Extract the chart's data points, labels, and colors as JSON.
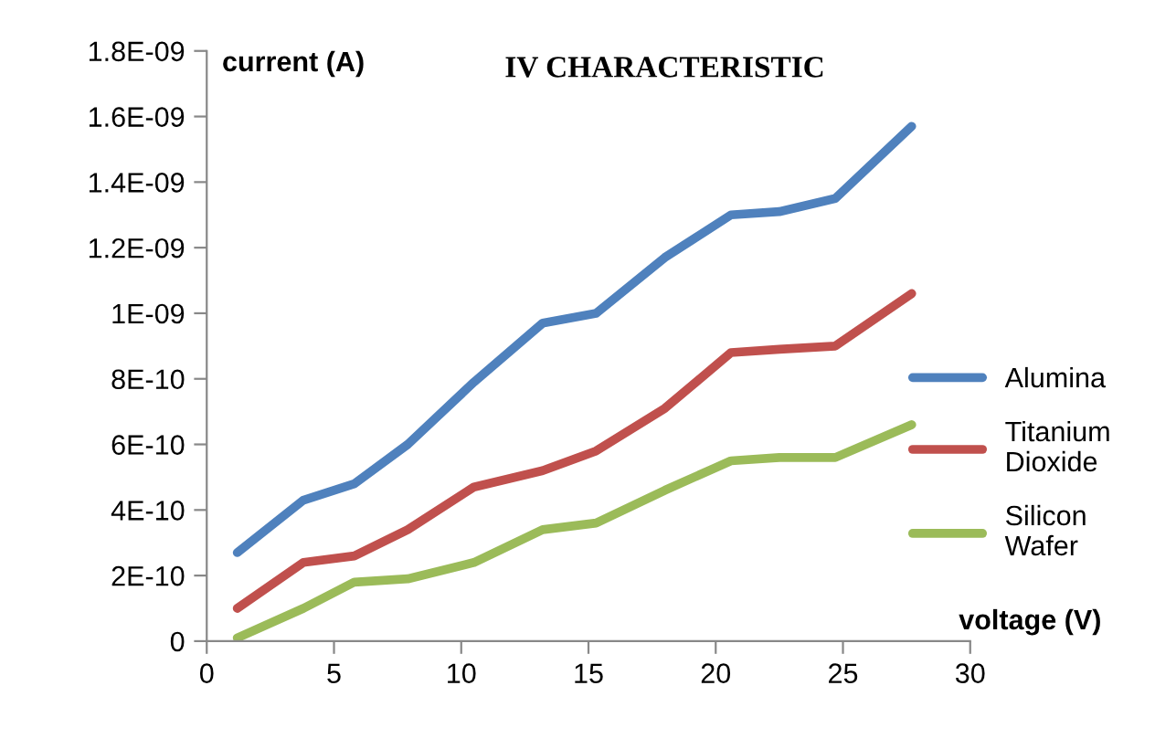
{
  "chart_data": {
    "type": "line",
    "title": "IV CHARACTERISTIC",
    "xlabel": "voltage (V)",
    "ylabel": "current (A)",
    "x": [
      1.2,
      3.8,
      5.8,
      7.9,
      10.5,
      13.2,
      15.3,
      18,
      20.6,
      22.5,
      24.7,
      27.7
    ],
    "series": [
      {
        "name": "Alumina",
        "color": "#4f81bd",
        "values": [
          2.7e-10,
          4.3e-10,
          4.8e-10,
          6e-10,
          7.9e-10,
          9.7e-10,
          1e-09,
          1.17e-09,
          1.3e-09,
          1.31e-09,
          1.35e-09,
          1.57e-09
        ]
      },
      {
        "name": "Titanium Dioxide",
        "color": "#c0504d",
        "values": [
          1e-10,
          2.4e-10,
          2.6e-10,
          3.4e-10,
          4.7e-10,
          5.2e-10,
          5.8e-10,
          7.1e-10,
          8.8e-10,
          8.9e-10,
          9e-10,
          1.06e-09
        ]
      },
      {
        "name": "Silicon Wafer",
        "color": "#9bbb59",
        "values": [
          1e-11,
          1e-10,
          1.8e-10,
          1.9e-10,
          2.4e-10,
          3.4e-10,
          3.6e-10,
          4.6e-10,
          5.5e-10,
          5.6e-10,
          5.6e-10,
          6.6e-10
        ]
      }
    ],
    "xlim": [
      0,
      30
    ],
    "xticks": [
      0,
      5,
      10,
      15,
      20,
      25,
      30
    ],
    "ylim": [
      0,
      1.8e-09
    ],
    "yticks": [
      {
        "value": 0,
        "label": "0"
      },
      {
        "value": 2e-10,
        "label": "2E-10"
      },
      {
        "value": 4e-10,
        "label": "4E-10"
      },
      {
        "value": 6e-10,
        "label": "6E-10"
      },
      {
        "value": 8e-10,
        "label": "8E-10"
      },
      {
        "value": 1e-09,
        "label": "1E-09"
      },
      {
        "value": 1.2e-09,
        "label": "1.2E-09"
      },
      {
        "value": 1.4e-09,
        "label": "1.4E-09"
      },
      {
        "value": 1.6e-09,
        "label": "1.6E-09"
      },
      {
        "value": 1.8e-09,
        "label": "1.8E-09"
      }
    ],
    "grid": false,
    "legend": "right",
    "marker": "none",
    "line_style": "solid"
  }
}
